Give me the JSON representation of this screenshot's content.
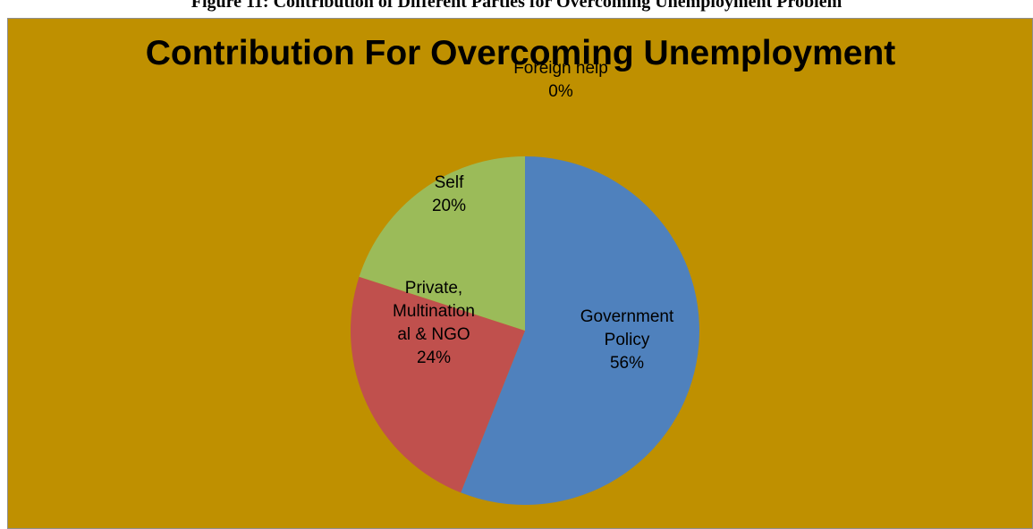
{
  "figure_caption": "Figure 11: Contribution of Different Parties for Overcoming Unemployment Problem",
  "chart_data": {
    "type": "pie",
    "title": "Contribution For Overcoming Unemployment",
    "background_color": "#bf9000",
    "slices": [
      {
        "label_lines": [
          "Government",
          "Policy"
        ],
        "name": "Government Policy",
        "value": 56,
        "value_label": "56%",
        "color": "#4f81bd"
      },
      {
        "label_lines": [
          "Private,",
          "Multination",
          "al & NGO"
        ],
        "name": "Private, Multinational & NGO",
        "value": 24,
        "value_label": "24%",
        "color": "#c0504d"
      },
      {
        "label_lines": [
          "Self"
        ],
        "name": "Self",
        "value": 20,
        "value_label": "20%",
        "color": "#9bbb59"
      },
      {
        "label_lines": [
          "Foreign help"
        ],
        "name": "Foreign help",
        "value": 0,
        "value_label": "0%",
        "color": "#8064a2"
      }
    ]
  }
}
